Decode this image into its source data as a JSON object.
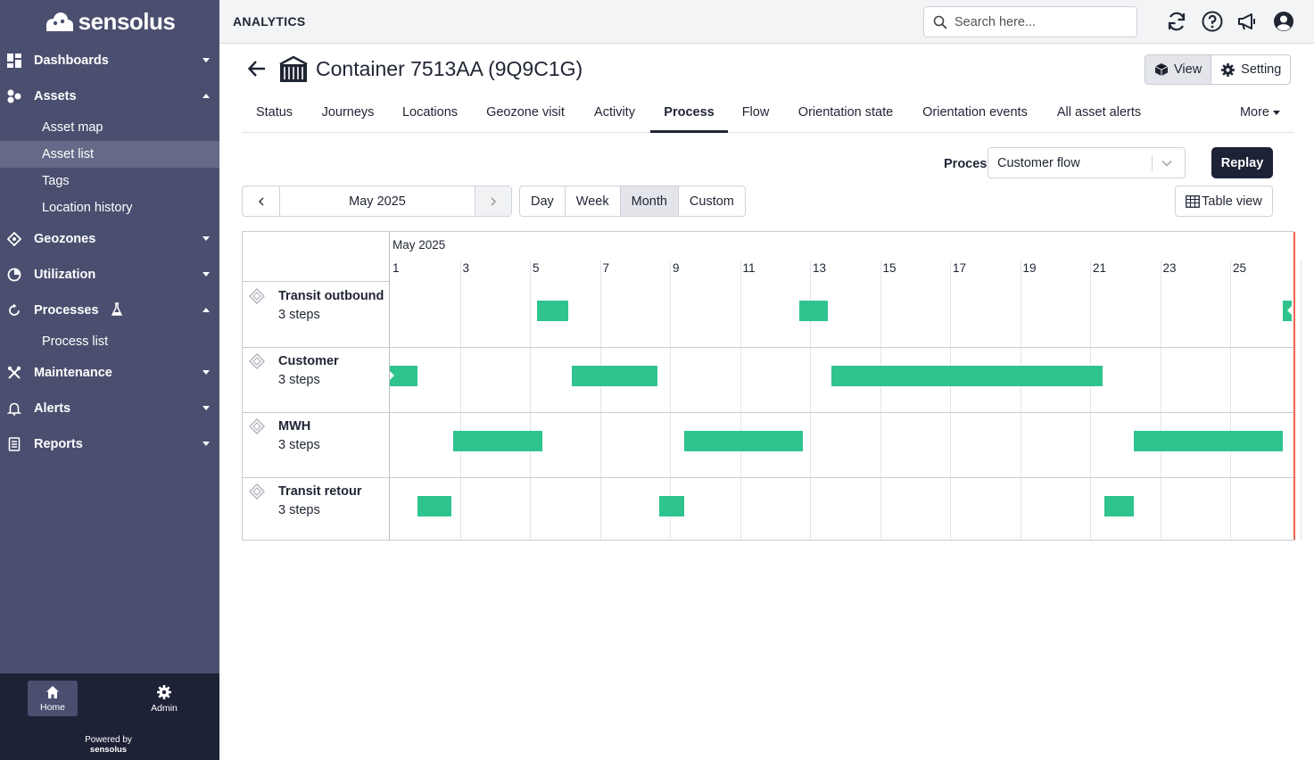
{
  "brand": {
    "name": "sensolus"
  },
  "sidebar": {
    "items": [
      {
        "label": "Dashboards",
        "icon": "dashboard-icon",
        "expanded": false
      },
      {
        "label": "Assets",
        "icon": "assets-icon",
        "expanded": true,
        "children": [
          {
            "label": "Asset map",
            "active": false
          },
          {
            "label": "Asset list",
            "active": true
          },
          {
            "label": "Tags",
            "active": false
          },
          {
            "label": "Location history",
            "active": false
          }
        ]
      },
      {
        "label": "Geozones",
        "icon": "geozone-icon",
        "expanded": false
      },
      {
        "label": "Utilization",
        "icon": "utilization-icon",
        "expanded": false
      },
      {
        "label": "Processes",
        "icon": "processes-icon",
        "badge_icon": "flask-icon",
        "expanded": true,
        "children": [
          {
            "label": "Process list",
            "active": false
          }
        ]
      },
      {
        "label": "Maintenance",
        "icon": "wrench-icon",
        "expanded": false
      },
      {
        "label": "Alerts",
        "icon": "bell-icon",
        "expanded": false
      },
      {
        "label": "Reports",
        "icon": "report-icon",
        "expanded": false
      }
    ],
    "bottom": {
      "home_label": "Home",
      "admin_label": "Admin",
      "powered_by": "Powered by",
      "powered_brand": "sensolus"
    }
  },
  "header": {
    "section": "ANALYTICS",
    "search_placeholder": "Search here..."
  },
  "page": {
    "title": "Container 7513AA (9Q9C1G)",
    "view_label": "View",
    "setting_label": "Setting"
  },
  "tabs": {
    "items": [
      "Status",
      "Journeys",
      "Locations",
      "Geozone visit",
      "Activity",
      "Process",
      "Flow",
      "Orientation state",
      "Orientation events",
      "All asset alerts"
    ],
    "active": "Process",
    "more_label": "More"
  },
  "process_select": {
    "label": "Process",
    "value": "Customer flow",
    "replay_label": "Replay"
  },
  "date_nav": {
    "period": "May 2025",
    "ranges": [
      "Day",
      "Week",
      "Month",
      "Custom"
    ],
    "active_range": "Month",
    "table_view_label": "Table view"
  },
  "timeline": {
    "month_label": "May 2025",
    "tick_labels": [
      "1",
      "3",
      "5",
      "7",
      "9",
      "11",
      "13",
      "15",
      "17",
      "19",
      "21",
      "23",
      "25"
    ],
    "now_day": 26.8,
    "rows": [
      {
        "name": "Transit outbound",
        "steps": "3 steps",
        "bars": [
          {
            "start": 5.2,
            "end": 6.1
          },
          {
            "start": 12.7,
            "end": 13.5
          },
          {
            "start": 26.5,
            "end": 26.75,
            "arrow": true
          }
        ]
      },
      {
        "name": "Customer",
        "steps": "3 steps",
        "bars": [
          {
            "start": 1.0,
            "end": 1.8,
            "arrow_left": true
          },
          {
            "start": 6.2,
            "end": 8.65
          },
          {
            "start": 13.6,
            "end": 21.35
          }
        ]
      },
      {
        "name": "MWH",
        "steps": "3 steps",
        "bars": [
          {
            "start": 2.8,
            "end": 5.35
          },
          {
            "start": 9.4,
            "end": 12.8
          },
          {
            "start": 22.25,
            "end": 26.5
          }
        ]
      },
      {
        "name": "Transit retour",
        "steps": "3 steps",
        "bars": [
          {
            "start": 1.8,
            "end": 2.75
          },
          {
            "start": 8.7,
            "end": 9.4
          },
          {
            "start": 21.4,
            "end": 22.25
          }
        ]
      }
    ]
  },
  "colors": {
    "sidebar": "#4a4f6f",
    "sidebar_bottom": "#1d2236",
    "bar": "#2fc48d",
    "now_line": "#f0624d",
    "primary_button": "#1d2236"
  }
}
